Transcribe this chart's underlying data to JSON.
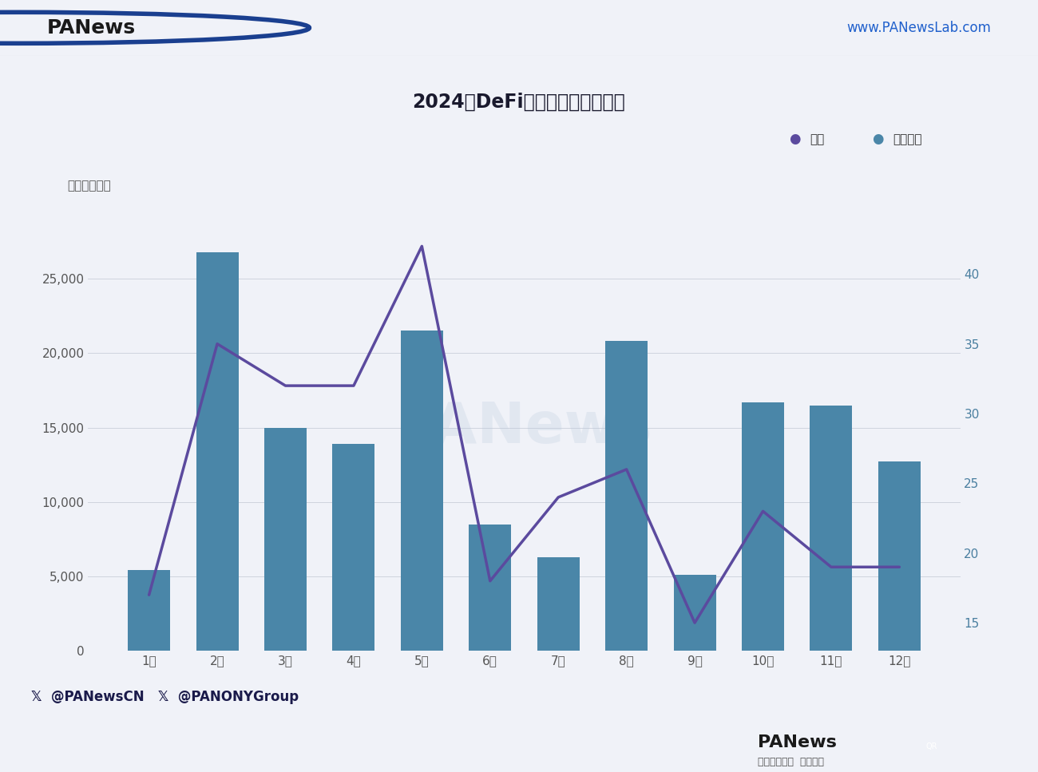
{
  "title": "2024年DeFi赛道各月投融资情况",
  "unit_label": "单位：万美元",
  "months": [
    "1月",
    "2月",
    "3月",
    "4月",
    "5月",
    "6月",
    "7月",
    "8月",
    "9月",
    "10月",
    "11月",
    "12月"
  ],
  "bar_values": [
    5400,
    26800,
    15000,
    13900,
    21500,
    8500,
    6300,
    20800,
    5100,
    16700,
    16500,
    12700
  ],
  "line_values": [
    17,
    35,
    32,
    32,
    42,
    18,
    24,
    26,
    15,
    23,
    19,
    19
  ],
  "bar_color": "#4a86a8",
  "line_color": "#5b4a9e",
  "left_ylim": [
    0,
    30000
  ],
  "right_ylim": [
    13,
    45
  ],
  "left_yticks": [
    0,
    5000,
    10000,
    15000,
    20000,
    25000
  ],
  "right_yticks": [
    15,
    20,
    25,
    30,
    35,
    40
  ],
  "background_color": "#f0f2f8",
  "chart_bg": "#f0f2f8",
  "header_bg": "#ffffff",
  "footer_top_bg": "#e8eaf0",
  "footer_bot_bg": "#ffffff",
  "legend_line_label": "数量",
  "legend_bar_label": "资金规模",
  "title_fontsize": 17,
  "tick_fontsize": 11,
  "unit_fontsize": 11,
  "legend_fontsize": 11,
  "footer_text": "  @PANewsCN    @PANONYGroup",
  "header_url": "www.PANewsLab.com",
  "watermark": "PANews",
  "grid_color": "#d0d4de",
  "tick_color": "#555555",
  "right_tick_color": "#4a7fa0"
}
